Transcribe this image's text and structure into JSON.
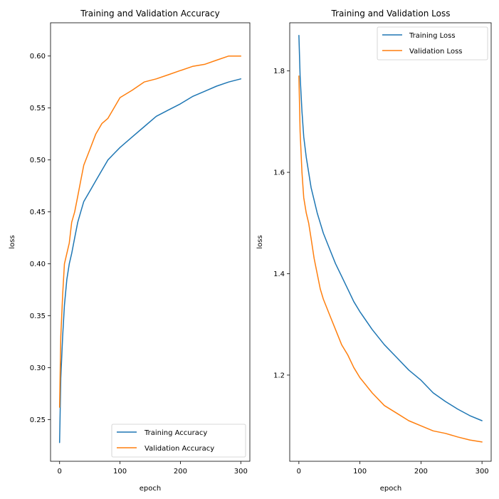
{
  "chart_data": [
    {
      "type": "line",
      "title": "Training and Validation Accuracy",
      "xlabel": "epoch",
      "ylabel": "loss",
      "xlim": [
        -15,
        315
      ],
      "ylim": [
        0.21,
        0.632
      ],
      "xticks": [
        0,
        100,
        200,
        300
      ],
      "yticks": [
        0.25,
        0.3,
        0.35,
        0.4,
        0.45,
        0.5,
        0.55,
        0.6
      ],
      "ytick_labels": [
        "0.25",
        "0.30",
        "0.35",
        "0.40",
        "0.45",
        "0.50",
        "0.55",
        "0.60"
      ],
      "legend_position": "lower-right",
      "grid": false,
      "x": [
        0,
        2,
        5,
        8,
        12,
        16,
        20,
        25,
        30,
        35,
        40,
        50,
        60,
        70,
        80,
        90,
        100,
        120,
        140,
        160,
        180,
        200,
        220,
        240,
        260,
        280,
        300
      ],
      "series": [
        {
          "name": "Training Accuracy",
          "color": "#1f77b4",
          "values": [
            0.228,
            0.29,
            0.33,
            0.36,
            0.385,
            0.4,
            0.41,
            0.425,
            0.44,
            0.45,
            0.46,
            0.47,
            0.48,
            0.49,
            0.5,
            0.506,
            0.512,
            0.522,
            0.532,
            0.542,
            0.548,
            0.554,
            0.561,
            0.566,
            0.571,
            0.575,
            0.578
          ]
        },
        {
          "name": "Validation Accuracy",
          "color": "#ff7f0e",
          "values": [
            0.262,
            0.33,
            0.37,
            0.4,
            0.41,
            0.42,
            0.44,
            0.45,
            0.465,
            0.48,
            0.495,
            0.51,
            0.525,
            0.535,
            0.54,
            0.55,
            0.56,
            0.567,
            0.575,
            0.578,
            0.582,
            0.586,
            0.59,
            0.592,
            0.596,
            0.6,
            0.6
          ]
        }
      ]
    },
    {
      "type": "line",
      "title": "Training and Validation Loss",
      "xlabel": "epoch",
      "ylabel": "loss",
      "xlim": [
        -15,
        315
      ],
      "ylim": [
        1.03,
        1.895
      ],
      "xticks": [
        0,
        100,
        200,
        300
      ],
      "yticks": [
        1.2,
        1.4,
        1.6,
        1.8
      ],
      "ytick_labels": [
        "1.2",
        "1.4",
        "1.6",
        "1.8"
      ],
      "legend_position": "top-right",
      "grid": false,
      "x": [
        0,
        2,
        5,
        8,
        12,
        16,
        20,
        25,
        30,
        35,
        40,
        50,
        60,
        70,
        80,
        90,
        100,
        120,
        140,
        160,
        180,
        200,
        220,
        240,
        260,
        280,
        300
      ],
      "series": [
        {
          "name": "Training Loss",
          "color": "#1f77b4",
          "values": [
            1.87,
            1.79,
            1.72,
            1.67,
            1.63,
            1.6,
            1.57,
            1.545,
            1.52,
            1.5,
            1.48,
            1.45,
            1.42,
            1.395,
            1.37,
            1.345,
            1.325,
            1.29,
            1.26,
            1.235,
            1.21,
            1.19,
            1.165,
            1.148,
            1.133,
            1.12,
            1.11
          ]
        },
        {
          "name": "Validation Loss",
          "color": "#ff7f0e",
          "values": [
            1.79,
            1.68,
            1.6,
            1.55,
            1.52,
            1.5,
            1.47,
            1.43,
            1.4,
            1.37,
            1.35,
            1.32,
            1.29,
            1.26,
            1.24,
            1.215,
            1.195,
            1.165,
            1.14,
            1.125,
            1.11,
            1.1,
            1.09,
            1.085,
            1.078,
            1.072,
            1.068
          ]
        }
      ]
    }
  ]
}
